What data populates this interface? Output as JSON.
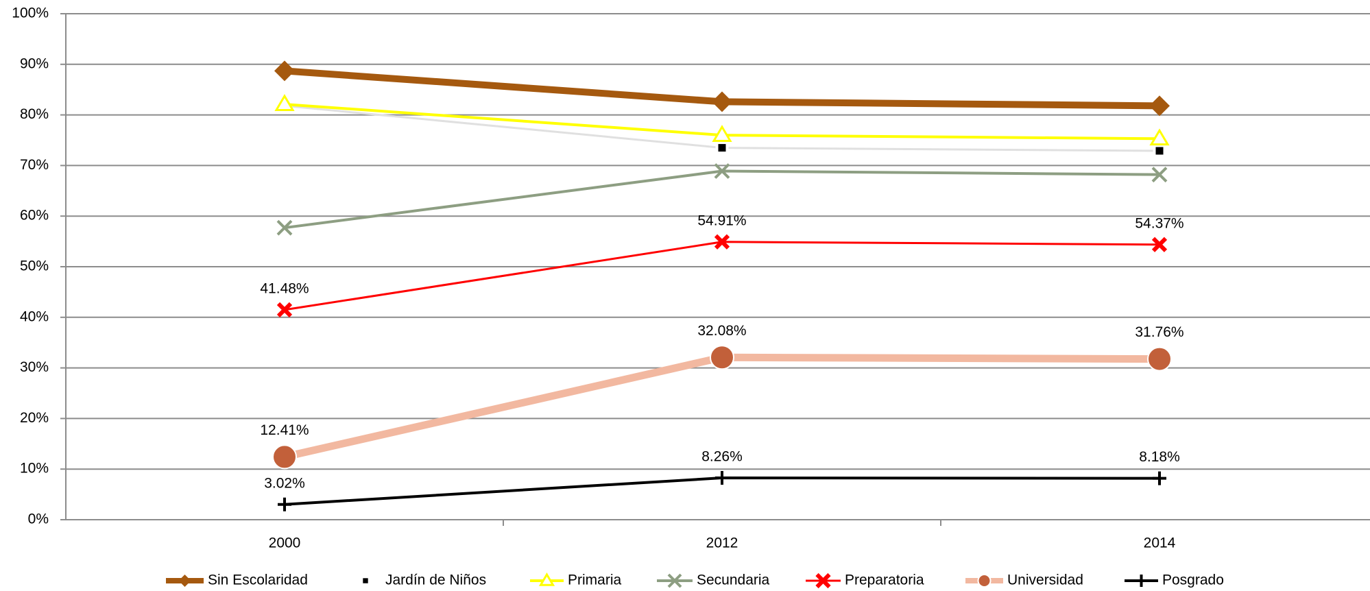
{
  "chart_data": {
    "type": "line",
    "categories": [
      "2000",
      "2012",
      "2014"
    ],
    "series": [
      {
        "name": "Sin Escolaridad",
        "color": "#a5590f",
        "marker": "diamond",
        "marker_color": "#a5590f",
        "values": [
          88.7,
          82.6,
          81.8
        ]
      },
      {
        "name": "Jardín de Niños",
        "color": "#e0e0e0",
        "marker": "square",
        "marker_color": "#000000",
        "values": [
          81.8,
          73.5,
          72.9
        ]
      },
      {
        "name": "Primaria",
        "color": "#ffff00",
        "marker": "triangle",
        "marker_color": "#ffff00",
        "values": [
          82.1,
          76.0,
          75.3
        ]
      },
      {
        "name": "Secundaria",
        "color": "#8d9e82",
        "marker": "cross",
        "marker_color": "#8d9e82",
        "values": [
          57.7,
          68.9,
          68.2
        ]
      },
      {
        "name": "Preparatoria",
        "color": "#ff0000",
        "marker": "boldcross",
        "marker_color": "#ff0000",
        "values": [
          41.48,
          54.91,
          54.37
        ],
        "value_labels": [
          "41.48%",
          "54.91%",
          "54.37%"
        ]
      },
      {
        "name": "Universidad",
        "color": "#f2b8a0",
        "marker": "circle",
        "marker_color": "#c2603a",
        "values": [
          12.41,
          32.08,
          31.76
        ],
        "value_labels": [
          "12.41%",
          "32.08%",
          "31.76%"
        ]
      },
      {
        "name": "Posgrado",
        "color": "#000000",
        "marker": "plus",
        "marker_color": "#000000",
        "values": [
          3.02,
          8.26,
          8.18
        ],
        "value_labels": [
          "3.02%",
          "8.26%",
          "8.18%"
        ]
      }
    ],
    "ylim": [
      0,
      100
    ],
    "yticks": [
      {
        "value": 0,
        "label": "0%"
      },
      {
        "value": 10,
        "label": "10%"
      },
      {
        "value": 20,
        "label": "20%"
      },
      {
        "value": 30,
        "label": "30%"
      },
      {
        "value": 40,
        "label": "40%"
      },
      {
        "value": 50,
        "label": "50%"
      },
      {
        "value": 60,
        "label": "60%"
      },
      {
        "value": 70,
        "label": "70%"
      },
      {
        "value": 80,
        "label": "80%"
      },
      {
        "value": 90,
        "label": "90%"
      },
      {
        "value": 100,
        "label": "100%"
      }
    ],
    "grid": true,
    "legend": "bottom"
  }
}
